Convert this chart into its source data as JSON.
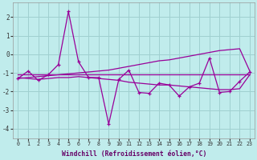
{
  "xlabel": "Windchill (Refroidissement éolien,°C)",
  "background_color": "#c0ecec",
  "grid_color": "#a0d0d0",
  "line_color": "#990099",
  "x_values": [
    0,
    1,
    2,
    3,
    4,
    5,
    6,
    7,
    8,
    9,
    10,
    11,
    12,
    13,
    14,
    15,
    16,
    17,
    18,
    19,
    20,
    21,
    22,
    23
  ],
  "y_main": [
    -1.3,
    -0.9,
    -1.4,
    -1.1,
    -0.55,
    2.3,
    -0.4,
    -1.25,
    -1.25,
    -3.75,
    -1.35,
    -0.85,
    -2.05,
    -2.1,
    -1.55,
    -1.65,
    -2.25,
    -1.75,
    -1.55,
    -0.2,
    -2.05,
    -2.0,
    -1.45,
    -0.95
  ],
  "y_flat": [
    -1.1,
    -1.1,
    -1.1,
    -1.1,
    -1.1,
    -1.1,
    -1.1,
    -1.1,
    -1.1,
    -1.1,
    -1.1,
    -1.1,
    -1.1,
    -1.1,
    -1.1,
    -1.1,
    -1.1,
    -1.1,
    -1.1,
    -1.1,
    -1.1,
    -1.1,
    -1.1,
    -1.1
  ],
  "y_rise": [
    -1.3,
    -1.25,
    -1.2,
    -1.15,
    -1.1,
    -1.05,
    -1.0,
    -0.95,
    -0.9,
    -0.85,
    -0.75,
    -0.65,
    -0.55,
    -0.45,
    -0.35,
    -0.3,
    -0.2,
    -0.1,
    0.0,
    0.1,
    0.2,
    0.25,
    0.3,
    -0.9
  ],
  "y_fall": [
    -1.25,
    -1.3,
    -1.35,
    -1.3,
    -1.25,
    -1.25,
    -1.2,
    -1.25,
    -1.3,
    -1.35,
    -1.4,
    -1.5,
    -1.55,
    -1.6,
    -1.65,
    -1.65,
    -1.7,
    -1.75,
    -1.8,
    -1.85,
    -1.9,
    -1.9,
    -1.85,
    -1.1
  ],
  "ylim": [
    -4.5,
    2.8
  ],
  "xlim": [
    -0.5,
    23.5
  ],
  "yticks": [
    -4,
    -3,
    -2,
    -1,
    0,
    1,
    2
  ],
  "xticks": [
    0,
    1,
    2,
    3,
    4,
    5,
    6,
    7,
    8,
    9,
    10,
    11,
    12,
    13,
    14,
    15,
    16,
    17,
    18,
    19,
    20,
    21,
    22,
    23
  ]
}
